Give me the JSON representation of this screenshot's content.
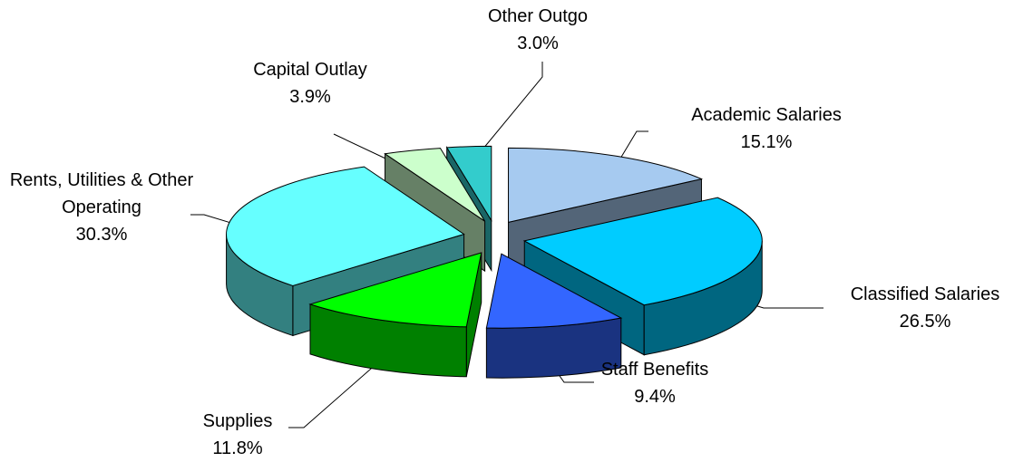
{
  "chart_data": {
    "type": "pie",
    "three_d": true,
    "exploded": true,
    "categories": [
      "Academic Salaries",
      "Classified Salaries",
      "Staff Benefits",
      "Supplies",
      "Rents, Utilities & Other Operating",
      "Capital Outlay",
      "Other Outgo"
    ],
    "values": [
      15.1,
      26.5,
      9.4,
      11.8,
      30.3,
      3.9,
      3.0
    ],
    "value_labels": [
      "15.1%",
      "26.5%",
      "9.4%",
      "11.8%",
      "30.3%",
      "3.9%",
      "3.0%"
    ],
    "colors": [
      "#a6caf0",
      "#00ccff",
      "#3366ff",
      "#00ff00",
      "#66ffff",
      "#ccffcc",
      "#33cccc"
    ]
  }
}
